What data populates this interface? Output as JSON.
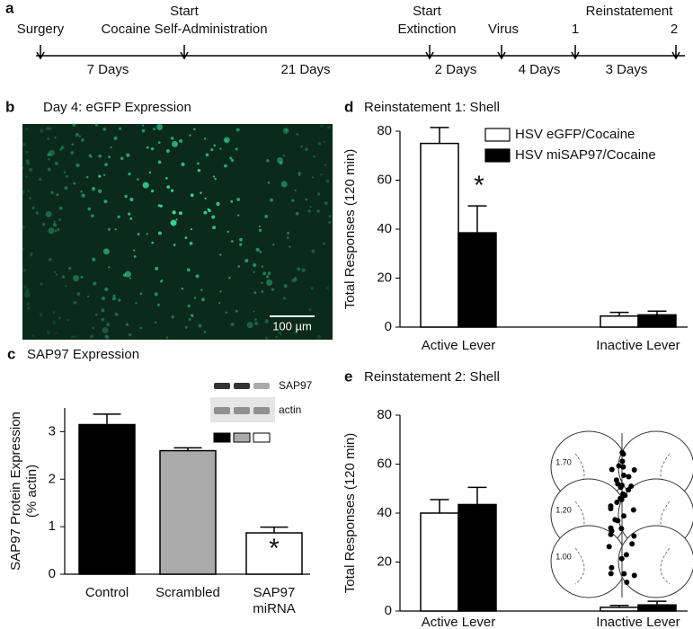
{
  "timeline": {
    "panel": "a",
    "above": [
      "Start",
      "Start",
      "Reinstatement"
    ],
    "events": [
      "Surgery",
      "Cocaine Self-Administration",
      "Extinction",
      "Virus",
      "1",
      "2"
    ],
    "intervals": [
      "7 Days",
      "21 Days",
      "2 Days",
      "4 Days",
      "3 Days"
    ]
  },
  "image_panel": {
    "panel": "b",
    "title": "Day 4: eGFP Expression",
    "scale_bar": "100 µm"
  },
  "chart_data": [
    {
      "type": "bar",
      "panel": "c",
      "title": "SAP97 Expression",
      "y_label": [
        "SAP97 Protein Expression",
        "(% actin)"
      ],
      "categories": [
        [
          "Control"
        ],
        [
          "Scrambled"
        ],
        [
          "SAP97",
          "miRNA"
        ]
      ],
      "values": [
        3.15,
        2.6,
        0.87
      ],
      "errors": [
        0.22,
        0.06,
        0.12
      ],
      "colors": [
        "#000000",
        "#aaaaaa",
        "#ffffff"
      ],
      "ylim": [
        0,
        3.5
      ],
      "yticks": [
        0,
        1,
        2,
        3
      ],
      "annotation": "*",
      "inset_labels": [
        "SAP97",
        "actin"
      ]
    },
    {
      "type": "grouped-bar",
      "panel": "d",
      "title": "Reinstatement 1: Shell",
      "y_label": [
        "Total Responses (120 min)"
      ],
      "categories": [
        [
          "Active Lever"
        ],
        [
          "Inactive Lever"
        ]
      ],
      "series": [
        {
          "name": "HSV eGFP/Cocaine",
          "color": "#ffffff",
          "values": [
            75,
            4.5
          ],
          "errors": [
            6.5,
            1.5
          ]
        },
        {
          "name": "HSV miSAP97/Cocaine",
          "color": "#000000",
          "values": [
            38.5,
            5
          ],
          "errors": [
            11,
            1.5
          ]
        }
      ],
      "ylim": [
        0,
        80
      ],
      "yticks": [
        0,
        20,
        40,
        60,
        80
      ],
      "annotation": "*",
      "legend": "top-right"
    },
    {
      "type": "grouped-bar",
      "panel": "e",
      "title": "Reinstatement 2: Shell",
      "y_label": [
        "Total Responses (120 min)"
      ],
      "categories": [
        [
          "Active Lever"
        ],
        [
          "Inactive Lever"
        ]
      ],
      "series": [
        {
          "color": "#ffffff",
          "values": [
            40,
            1.5
          ],
          "errors": [
            5.5,
            0.8
          ]
        },
        {
          "color": "#000000",
          "values": [
            43.5,
            2.5
          ],
          "errors": [
            7,
            1.5
          ]
        }
      ],
      "ylim": [
        0,
        80
      ],
      "yticks": [
        0,
        20,
        40,
        60,
        80
      ],
      "diagram_labels": [
        "1.70",
        "1.20",
        "1.00"
      ]
    }
  ]
}
